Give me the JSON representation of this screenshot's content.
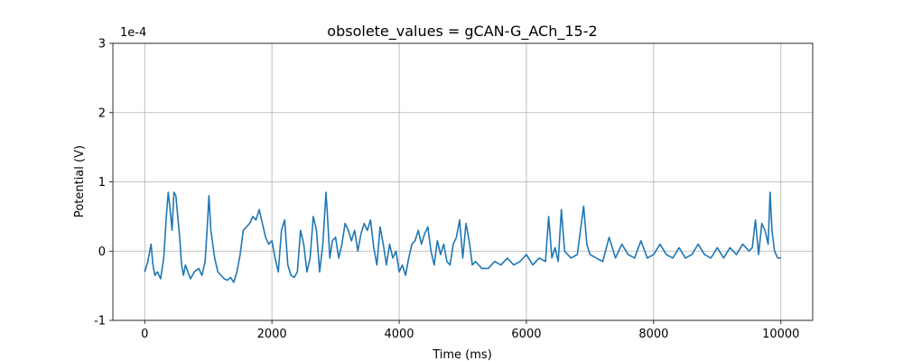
{
  "chart_data": {
    "type": "line",
    "title": "obsolete_values = gCAN-G_ACh_15-2",
    "xlabel": "Time (ms)",
    "ylabel": "Potential (V)",
    "offset_label": "1e-4",
    "xlim": [
      -500,
      10500
    ],
    "ylim": [
      -1,
      3
    ],
    "xticks": [
      0,
      2000,
      4000,
      6000,
      8000,
      10000
    ],
    "xtick_labels": [
      "0",
      "2000",
      "4000",
      "6000",
      "8000",
      "10000"
    ],
    "yticks": [
      -1,
      0,
      1,
      2,
      3
    ],
    "ytick_labels": [
      "-1",
      "0",
      "1",
      "2",
      "3"
    ],
    "grid": true,
    "line_color": "#1f77b4",
    "x": [
      0,
      50,
      100,
      130,
      160,
      200,
      250,
      300,
      340,
      370,
      400,
      430,
      460,
      490,
      520,
      550,
      580,
      610,
      640,
      680,
      720,
      780,
      850,
      900,
      950,
      990,
      1010,
      1040,
      1070,
      1100,
      1150,
      1200,
      1250,
      1300,
      1350,
      1400,
      1450,
      1500,
      1550,
      1600,
      1650,
      1700,
      1750,
      1800,
      1850,
      1900,
      1950,
      2000,
      2050,
      2100,
      2150,
      2200,
      2250,
      2300,
      2350,
      2400,
      2450,
      2500,
      2550,
      2600,
      2650,
      2700,
      2750,
      2800,
      2850,
      2880,
      2910,
      2950,
      3000,
      3050,
      3100,
      3150,
      3200,
      3250,
      3300,
      3350,
      3400,
      3450,
      3500,
      3550,
      3600,
      3650,
      3700,
      3750,
      3800,
      3850,
      3900,
      3950,
      4000,
      4050,
      4100,
      4150,
      4200,
      4250,
      4300,
      4350,
      4400,
      4450,
      4500,
      4550,
      4600,
      4650,
      4700,
      4750,
      4800,
      4850,
      4900,
      4950,
      5000,
      5050,
      5100,
      5150,
      5200,
      5300,
      5400,
      5500,
      5600,
      5700,
      5800,
      5900,
      6000,
      6100,
      6200,
      6300,
      6350,
      6400,
      6450,
      6500,
      6550,
      6600,
      6700,
      6800,
      6850,
      6900,
      6950,
      7000,
      7100,
      7200,
      7300,
      7400,
      7500,
      7600,
      7700,
      7800,
      7900,
      8000,
      8100,
      8200,
      8300,
      8400,
      8500,
      8600,
      8700,
      8800,
      8900,
      9000,
      9100,
      9200,
      9300,
      9400,
      9500,
      9550,
      9600,
      9650,
      9700,
      9750,
      9800,
      9830,
      9860,
      9900,
      9950,
      10000
    ],
    "y": [
      -0.3,
      -0.15,
      0.1,
      -0.2,
      -0.35,
      -0.3,
      -0.4,
      -0.1,
      0.5,
      0.85,
      0.6,
      0.3,
      0.85,
      0.8,
      0.5,
      0.2,
      -0.2,
      -0.35,
      -0.2,
      -0.3,
      -0.4,
      -0.3,
      -0.25,
      -0.35,
      -0.15,
      0.45,
      0.8,
      0.3,
      0.1,
      -0.1,
      -0.3,
      -0.35,
      -0.4,
      -0.42,
      -0.38,
      -0.45,
      -0.3,
      -0.05,
      0.3,
      0.35,
      0.4,
      0.5,
      0.45,
      0.6,
      0.4,
      0.2,
      0.1,
      0.15,
      -0.1,
      -0.3,
      0.3,
      0.45,
      -0.2,
      -0.35,
      -0.38,
      -0.3,
      0.3,
      0.1,
      -0.3,
      -0.1,
      0.5,
      0.3,
      -0.3,
      0.1,
      0.85,
      0.4,
      -0.1,
      0.15,
      0.2,
      -0.1,
      0.1,
      0.4,
      0.3,
      0.15,
      0.3,
      0.0,
      0.25,
      0.4,
      0.3,
      0.45,
      0.05,
      -0.2,
      0.35,
      0.1,
      -0.2,
      0.1,
      -0.1,
      0.0,
      -0.3,
      -0.2,
      -0.35,
      -0.1,
      0.1,
      0.15,
      0.3,
      0.1,
      0.25,
      0.35,
      0.0,
      -0.2,
      0.15,
      -0.05,
      0.1,
      -0.15,
      -0.2,
      0.1,
      0.2,
      0.45,
      -0.1,
      0.4,
      0.15,
      -0.2,
      -0.15,
      -0.25,
      -0.25,
      -0.15,
      -0.2,
      -0.1,
      -0.2,
      -0.15,
      -0.05,
      -0.2,
      -0.1,
      -0.15,
      0.5,
      -0.1,
      0.05,
      -0.15,
      0.6,
      0.0,
      -0.1,
      -0.05,
      0.3,
      0.65,
      0.1,
      -0.05,
      -0.1,
      -0.15,
      0.2,
      -0.1,
      0.1,
      -0.05,
      -0.1,
      0.15,
      -0.1,
      -0.05,
      0.1,
      -0.05,
      -0.1,
      0.05,
      -0.1,
      -0.05,
      0.1,
      -0.05,
      -0.1,
      0.05,
      -0.1,
      0.05,
      -0.05,
      0.1,
      0.0,
      0.05,
      0.45,
      -0.05,
      0.4,
      0.3,
      0.1,
      0.85,
      0.3,
      0.0,
      -0.1,
      -0.1
    ]
  }
}
